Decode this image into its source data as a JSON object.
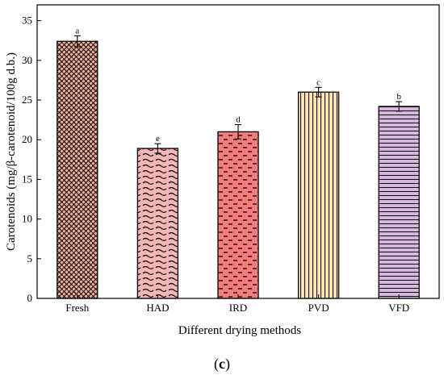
{
  "chart_data": {
    "type": "bar",
    "categories": [
      "Fresh",
      "HAD",
      "IRD",
      "PVD",
      "VFD"
    ],
    "values": [
      32.4,
      18.9,
      21.0,
      26.0,
      24.2
    ],
    "errors": [
      0.7,
      0.6,
      0.9,
      0.6,
      0.6
    ],
    "significance_letters": [
      "a",
      "e",
      "d",
      "c",
      "b"
    ],
    "bar_colors": [
      "#f0a98f",
      "#f7b6b6",
      "#f47c7c",
      "#fbe2a6",
      "#d9b6e0"
    ],
    "bar_patterns": [
      "dots",
      "waves",
      "dashes",
      "vertical-lines",
      "horizontal-lines"
    ],
    "xlabel": "Different drying methods",
    "ylabel": "Carotenoids (mg/β-carotenoid/100g d.b.)",
    "ylim": [
      0,
      37
    ],
    "yticks": [
      0,
      5,
      10,
      15,
      20,
      25,
      30,
      35
    ],
    "grid": false
  },
  "panel_label": {
    "open": "(",
    "letter": "c",
    "close": ")"
  }
}
